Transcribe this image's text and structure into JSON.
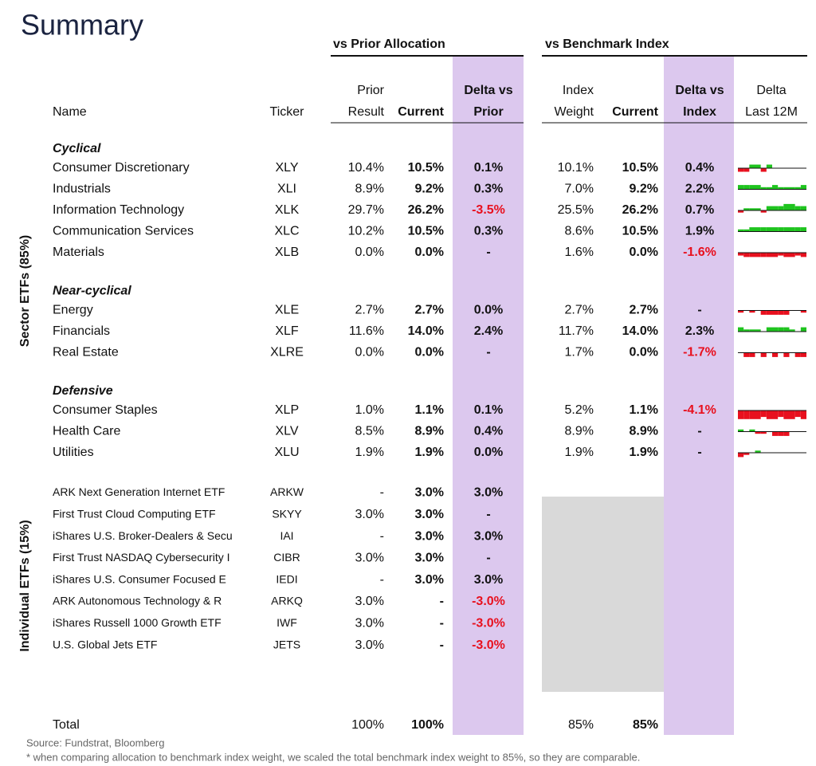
{
  "title": "Summary",
  "group_headers": {
    "prior": "vs Prior Allocation",
    "benchmark": "vs Benchmark Index"
  },
  "column_headers": {
    "name": [
      "Name"
    ],
    "ticker": [
      "Ticker"
    ],
    "prior": [
      "Prior",
      "Result"
    ],
    "current": [
      "Current"
    ],
    "delta_prior": [
      "Delta vs",
      "Prior"
    ],
    "index_weight": [
      "Index",
      "Weight"
    ],
    "index_current": [
      "Current"
    ],
    "delta_index": [
      "Delta vs",
      "Index"
    ],
    "spark": [
      "Delta",
      "Last 12M"
    ]
  },
  "sections": [
    {
      "label": "Sector ETFs (85%)",
      "groups": [
        {
          "name": "Cyclical",
          "rows": [
            {
              "name": "Consumer Discretionary",
              "ticker": "XLY",
              "prior": "10.4%",
              "current": "10.5%",
              "delta_prior": "0.1%",
              "index_weight": "10.1%",
              "index_current": "10.5%",
              "delta_index": "0.4%",
              "delta_12m": [
                -0.5,
                -0.5,
                0.5,
                0.5,
                -0.5,
                0.5,
                0,
                0,
                0,
                0,
                0,
                0
              ]
            },
            {
              "name": "Industrials",
              "ticker": "XLI",
              "prior": "8.9%",
              "current": "9.2%",
              "delta_prior": "0.3%",
              "index_weight": "7.0%",
              "index_current": "9.2%",
              "delta_index": "2.2%",
              "delta_12m": [
                0.6,
                0.6,
                0.6,
                0.6,
                0.3,
                0.3,
                0.6,
                0.3,
                0.3,
                0.3,
                0.3,
                0.6
              ]
            },
            {
              "name": "Information Technology",
              "ticker": "XLK",
              "prior": "29.7%",
              "current": "26.2%",
              "delta_prior": "-3.5%",
              "index_weight": "25.5%",
              "index_current": "26.2%",
              "delta_index": "0.7%",
              "delta_12m": [
                -0.3,
                0.3,
                0.3,
                0.3,
                -0.3,
                0.6,
                0.6,
                0.6,
                0.9,
                0.9,
                0.6,
                0.6
              ]
            },
            {
              "name": "Communication Services",
              "ticker": "XLC",
              "prior": "10.2%",
              "current": "10.5%",
              "delta_prior": "0.3%",
              "index_weight": "8.6%",
              "index_current": "10.5%",
              "delta_index": "1.9%",
              "delta_12m": [
                0.3,
                0.3,
                0.6,
                0.6,
                0.6,
                0.6,
                0.6,
                0.6,
                0.6,
                0.6,
                0.6,
                0.6
              ]
            },
            {
              "name": "Materials",
              "ticker": "XLB",
              "prior": "0.0%",
              "current": "0.0%",
              "delta_prior": "-",
              "index_weight": "1.6%",
              "index_current": "0.0%",
              "delta_index": "-1.6%",
              "delta_12m": [
                -0.4,
                -0.6,
                -0.6,
                -0.6,
                -0.6,
                -0.6,
                -0.6,
                -0.4,
                -0.6,
                -0.6,
                -0.4,
                -0.6
              ]
            }
          ]
        },
        {
          "name": "Near-cyclical",
          "rows": [
            {
              "name": "Energy",
              "ticker": "XLE",
              "prior": "2.7%",
              "current": "2.7%",
              "delta_prior": "0.0%",
              "index_weight": "2.7%",
              "index_current": "2.7%",
              "delta_index": "-",
              "delta_12m": [
                -0.3,
                0,
                -0.3,
                0,
                -0.6,
                -0.6,
                -0.6,
                -0.6,
                -0.6,
                0,
                0,
                -0.3
              ]
            },
            {
              "name": "Financials",
              "ticker": "XLF",
              "prior": "11.6%",
              "current": "14.0%",
              "delta_prior": "2.4%",
              "index_weight": "11.7%",
              "index_current": "14.0%",
              "delta_index": "2.3%",
              "delta_12m": [
                0.6,
                0.3,
                0.3,
                0.3,
                0,
                0.6,
                0.6,
                0.6,
                0.6,
                0.3,
                0,
                0.6
              ]
            },
            {
              "name": "Real Estate",
              "ticker": "XLRE",
              "prior": "0.0%",
              "current": "0.0%",
              "delta_prior": "-",
              "index_weight": "1.7%",
              "index_current": "0.0%",
              "delta_index": "-1.7%",
              "delta_12m": [
                0,
                -0.6,
                -0.6,
                0,
                -0.6,
                0,
                -0.6,
                0,
                -0.6,
                0,
                -0.6,
                -0.6
              ]
            }
          ]
        },
        {
          "name": "Defensive",
          "rows": [
            {
              "name": "Consumer Staples",
              "ticker": "XLP",
              "prior": "1.0%",
              "current": "1.1%",
              "delta_prior": "0.1%",
              "index_weight": "5.2%",
              "index_current": "1.1%",
              "delta_index": "-4.1%",
              "delta_12m": [
                -1.2,
                -1.2,
                -1.2,
                -1.2,
                -0.9,
                -1.2,
                -1.2,
                -0.9,
                -1.2,
                -1.2,
                -0.9,
                -1.2
              ]
            },
            {
              "name": "Health Care",
              "ticker": "XLV",
              "prior": "8.5%",
              "current": "8.9%",
              "delta_prior": "0.4%",
              "index_weight": "8.9%",
              "index_current": "8.9%",
              "delta_index": "-",
              "delta_12m": [
                0.3,
                0,
                0.3,
                -0.3,
                -0.3,
                0,
                -0.6,
                -0.6,
                -0.6,
                0,
                0,
                0
              ]
            },
            {
              "name": "Utilities",
              "ticker": "XLU",
              "prior": "1.9%",
              "current": "1.9%",
              "delta_prior": "0.0%",
              "index_weight": "1.9%",
              "index_current": "1.9%",
              "delta_index": "-",
              "delta_12m": [
                -0.6,
                -0.3,
                0,
                0.3,
                0,
                0,
                0,
                0,
                0,
                0,
                0,
                0
              ]
            }
          ]
        }
      ]
    },
    {
      "label": "Individual ETFs (15%)",
      "groups": [
        {
          "rows": [
            {
              "name": "ARK Next Generation Internet ETF",
              "ticker": "ARKW",
              "prior": "-",
              "current": "3.0%",
              "delta_prior": "3.0%"
            },
            {
              "name": "First Trust Cloud Computing ETF",
              "ticker": "SKYY",
              "prior": "3.0%",
              "current": "3.0%",
              "delta_prior": "-"
            },
            {
              "name": "iShares U.S. Broker-Dealers & Secu",
              "ticker": "IAI",
              "prior": "-",
              "current": "3.0%",
              "delta_prior": "3.0%"
            },
            {
              "name": "First Trust NASDAQ Cybersecurity I",
              "ticker": "CIBR",
              "prior": "3.0%",
              "current": "3.0%",
              "delta_prior": "-"
            },
            {
              "name": "iShares U.S. Consumer Focused E",
              "ticker": "IEDI",
              "prior": "-",
              "current": "3.0%",
              "delta_prior": "3.0%"
            },
            {
              "name": "ARK Autonomous Technology & R",
              "ticker": "ARKQ",
              "prior": "3.0%",
              "current": "-",
              "delta_prior": "-3.0%"
            },
            {
              "name": "iShares Russell 1000 Growth ETF",
              "ticker": "IWF",
              "prior": "3.0%",
              "current": "-",
              "delta_prior": "-3.0%"
            },
            {
              "name": "U.S. Global Jets ETF",
              "ticker": "JETS",
              "prior": "3.0%",
              "current": "-",
              "delta_prior": "-3.0%"
            }
          ]
        }
      ]
    }
  ],
  "total": {
    "name": "Total",
    "prior": "100%",
    "current": "100%",
    "index_weight": "85%",
    "index_current": "85%"
  },
  "footer": {
    "source": "Source: Fundstrat, Bloomberg",
    "note": "* when comparing allocation to benchmark index weight, we scaled the total benchmark index weight to 85%, so they are comparable."
  }
}
